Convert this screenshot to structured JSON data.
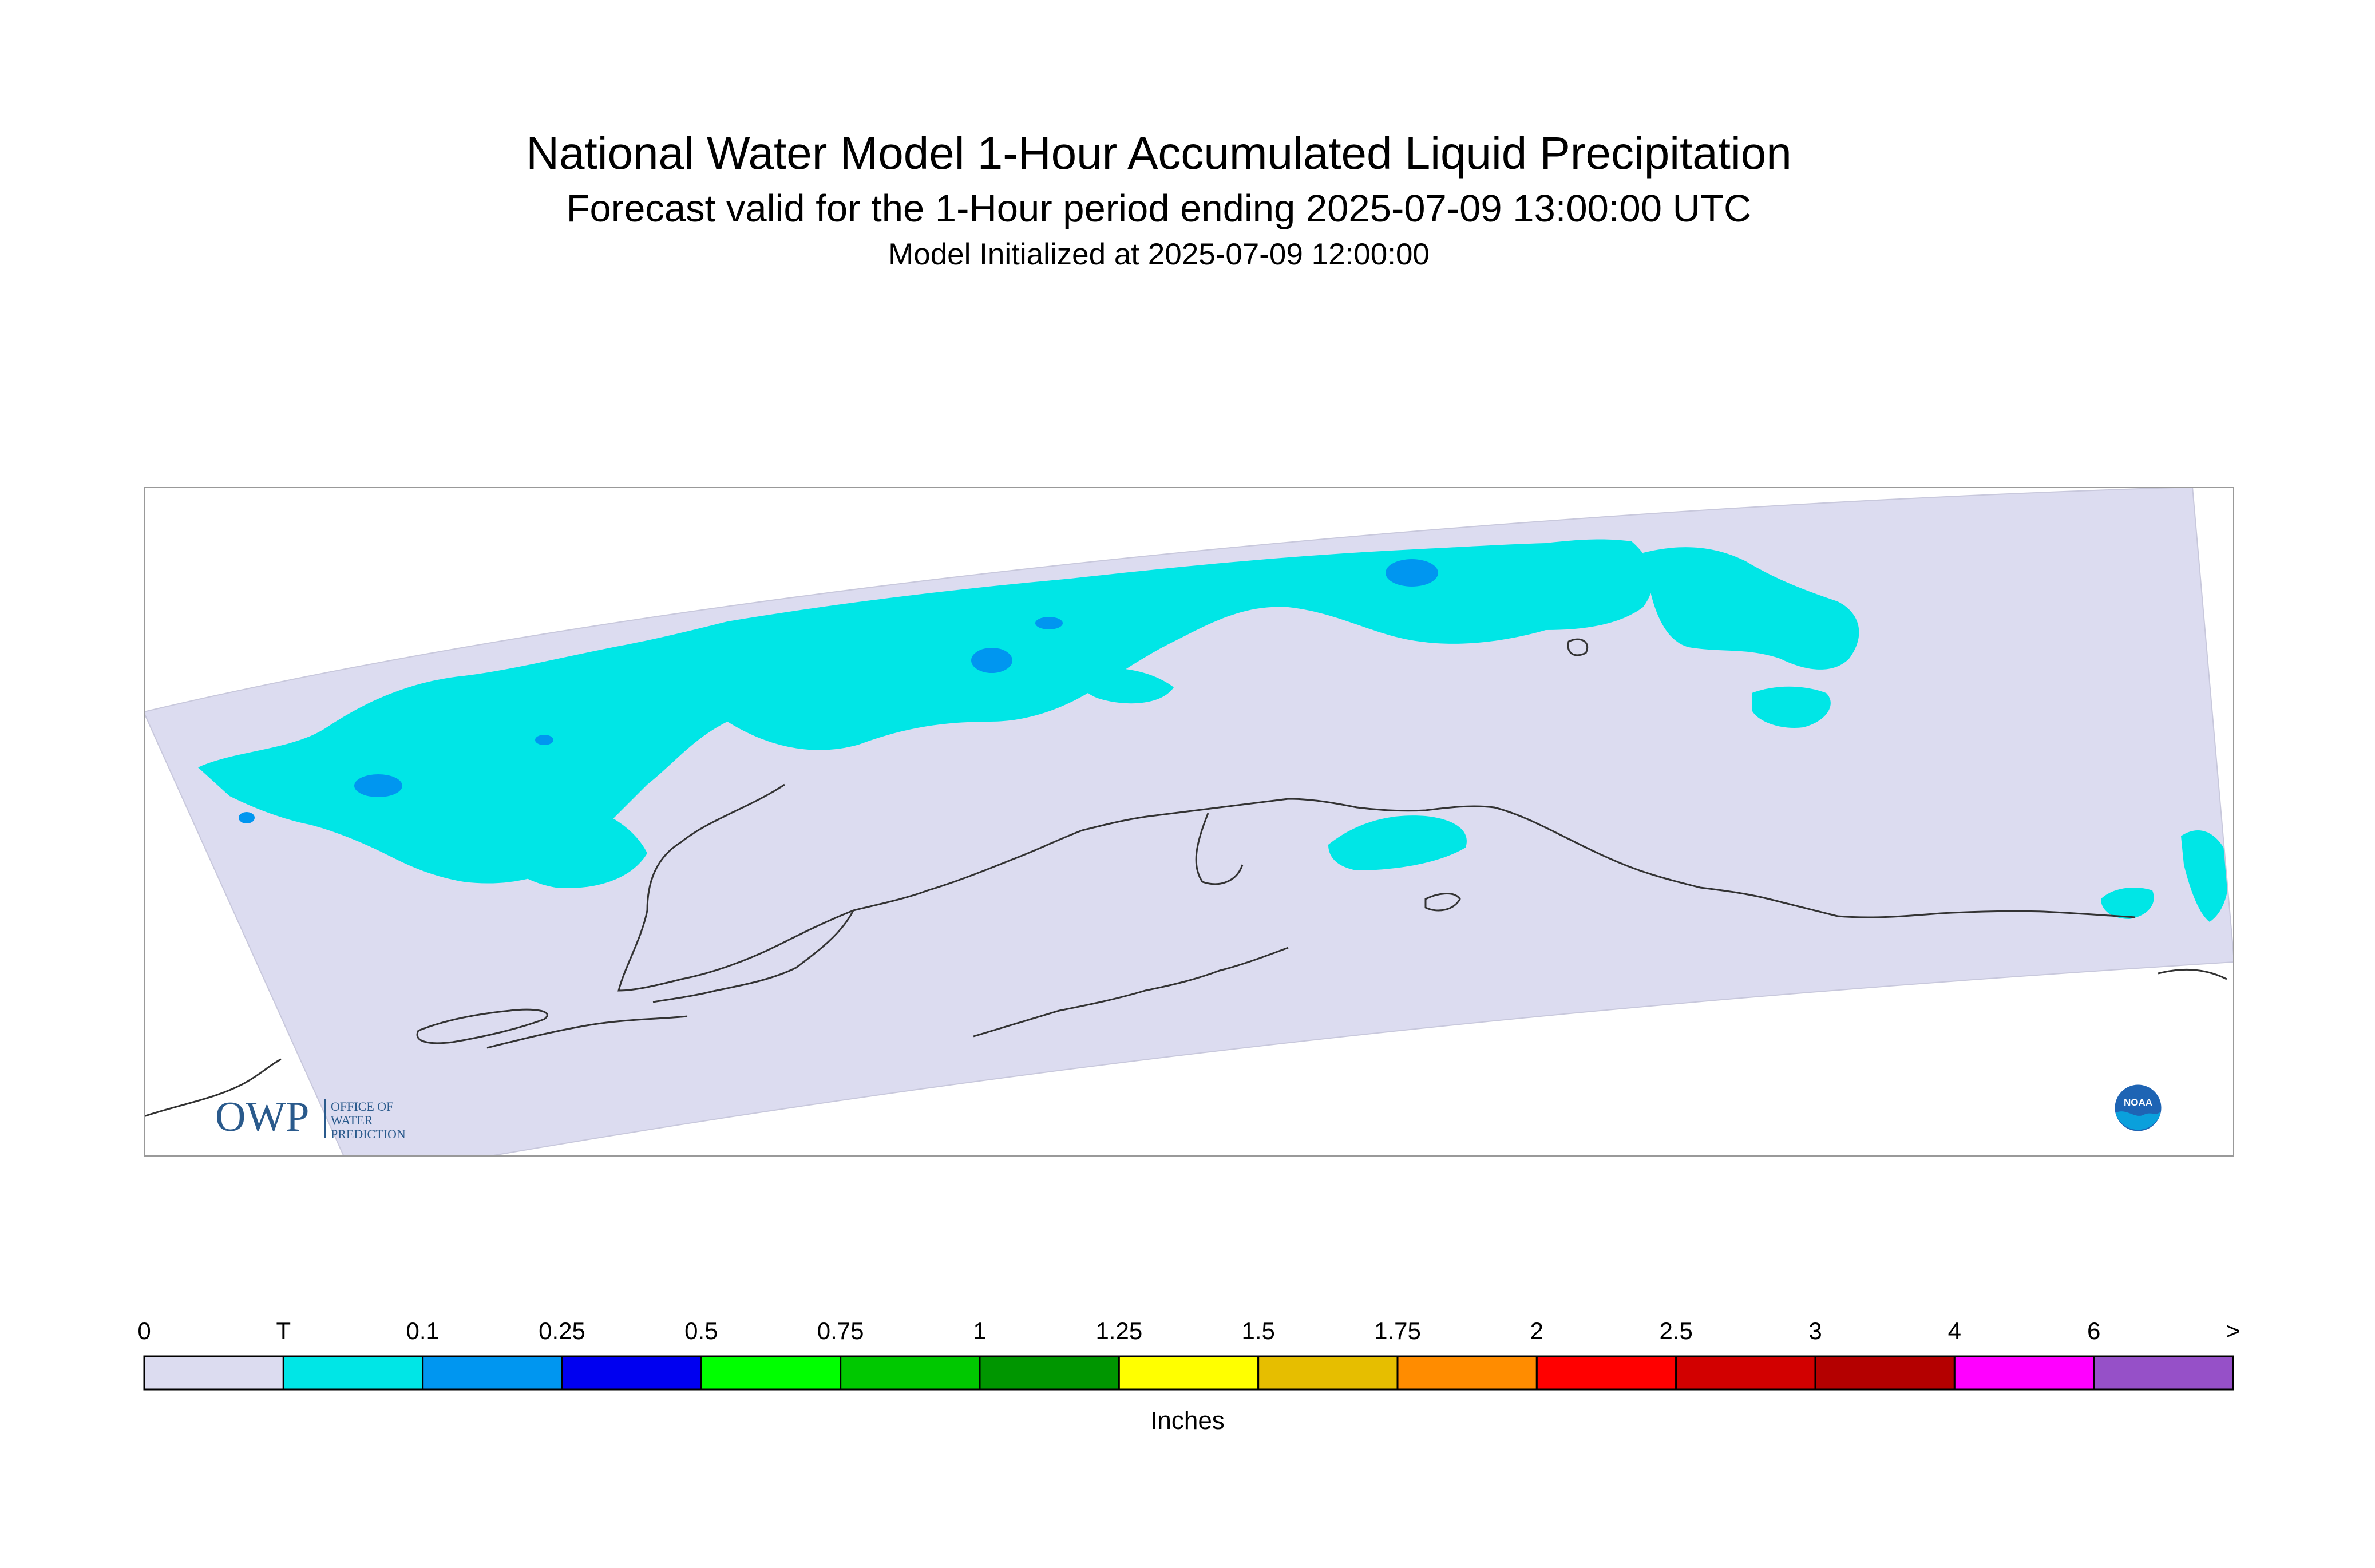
{
  "header": {
    "title": "National Water Model 1-Hour Accumulated Liquid Precipitation",
    "subtitle": "Forecast valid for the 1-Hour period ending 2025-07-09 13:00:00 UTC",
    "init_line": "Model Initialized at 2025-07-09 12:00:00"
  },
  "colorbar": {
    "units": "Inches",
    "labels": [
      "0",
      "T",
      "0.1",
      "0.25",
      "0.5",
      "0.75",
      "1",
      "1.25",
      "1.5",
      "1.75",
      "2",
      "2.5",
      "3",
      "4",
      "6",
      ">"
    ],
    "colors": [
      "#dcdcf0",
      "#00e6e6",
      "#0096f0",
      "#0000f0",
      "#00ff00",
      "#00c800",
      "#009600",
      "#ffff00",
      "#e6be00",
      "#ff8c00",
      "#ff0000",
      "#d20000",
      "#b40000",
      "#ff00ff",
      "#9650c8"
    ]
  },
  "map": {
    "region": "Alaska",
    "domain_fill": "#dcdcf0",
    "trace_color": "#00e6e6",
    "light_color": "#0096f0",
    "coast_color": "#333333",
    "frame_color": "#999999"
  },
  "logos": {
    "owp": {
      "abbr": "OWP",
      "line1": "OFFICE OF",
      "line2": "WATER",
      "line3": "PREDICTION",
      "color": "#2a5a8c"
    },
    "noaa": {
      "text": "NOAA",
      "color_outer": "#1e64b4",
      "color_inner": "#0aa0dc"
    }
  }
}
